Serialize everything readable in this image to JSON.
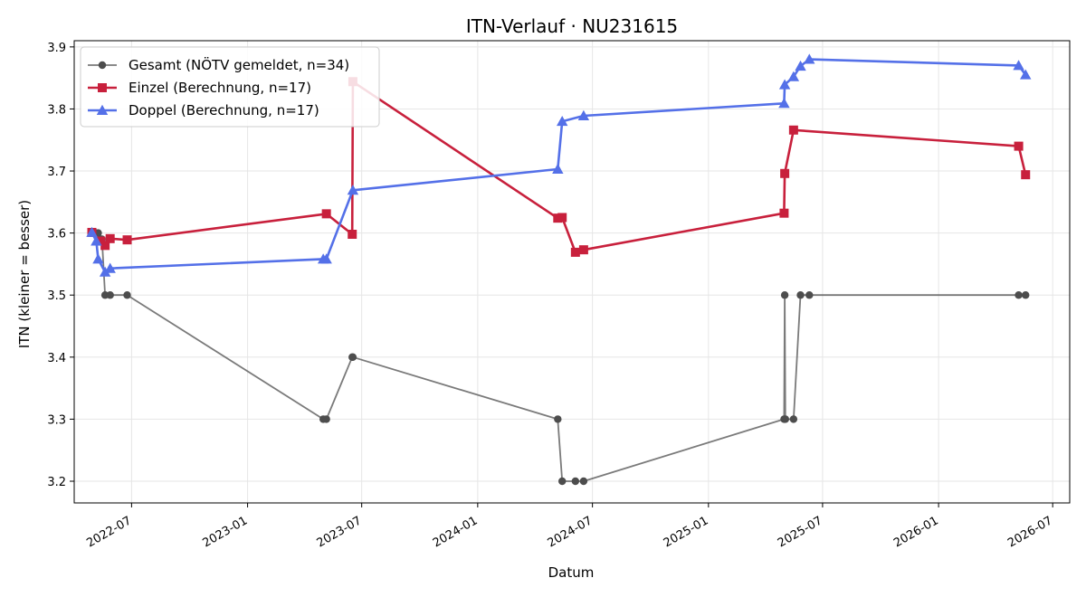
{
  "chart_data": {
    "type": "line",
    "title": "ITN-Verlauf · NU231615",
    "xlabel": "Datum",
    "ylabel": "ITN  (kleiner = besser)",
    "x_ticks": [
      "2022-07",
      "2023-01",
      "2023-07",
      "2024-01",
      "2024-07",
      "2025-01",
      "2025-07",
      "2026-01",
      "2026-07"
    ],
    "y_ticks": [
      3.2,
      3.3,
      3.4,
      3.5,
      3.6,
      3.7,
      3.8,
      3.9
    ],
    "xlim": [
      "2022-04-01",
      "2026-07-28"
    ],
    "ylim": [
      3.165,
      3.91
    ],
    "grid": true,
    "legend_position": "top-left",
    "series": [
      {
        "name": "Gesamt (NÖTV gemeldet, n=34)",
        "color": "#4d4d4d",
        "marker": "circle",
        "x": [
          "2022-04-29",
          "2022-05-04",
          "2022-05-06",
          "2022-05-09",
          "2022-05-13",
          "2022-05-15",
          "2022-05-20",
          "2022-05-28",
          "2022-06-24",
          "2023-05-01",
          "2023-05-06",
          "2023-06-16",
          "2023-06-17",
          "2024-05-07",
          "2024-05-14",
          "2024-06-04",
          "2024-06-17",
          "2025-05-01",
          "2025-05-02",
          "2025-05-03",
          "2025-05-16",
          "2025-05-27",
          "2025-06-10",
          "2026-05-08",
          "2026-05-19"
        ],
        "y": [
          3.6,
          3.6,
          3.6,
          3.6,
          3.59,
          3.59,
          3.5,
          3.5,
          3.5,
          3.3,
          3.3,
          3.4,
          3.4,
          3.3,
          3.2,
          3.2,
          3.2,
          3.3,
          3.5,
          3.3,
          3.3,
          3.5,
          3.5,
          3.5,
          3.5
        ]
      },
      {
        "name": "Einzel (Berechnung, n=17)",
        "color": "#c8203c",
        "marker": "square",
        "x": [
          "2022-04-29",
          "2022-05-13",
          "2022-05-20",
          "2022-05-28",
          "2022-06-24",
          "2023-05-06",
          "2023-06-16",
          "2023-06-17",
          "2024-05-07",
          "2024-05-14",
          "2024-06-04",
          "2024-06-17",
          "2025-05-01",
          "2025-05-02",
          "2025-05-16",
          "2026-05-08",
          "2026-05-19"
        ],
        "y": [
          3.601,
          3.587,
          3.58,
          3.591,
          3.589,
          3.631,
          3.598,
          3.844,
          3.624,
          3.625,
          3.569,
          3.573,
          3.632,
          3.696,
          3.766,
          3.74,
          3.694
        ]
      },
      {
        "name": "Doppel (Berechnung, n=17)",
        "color": "#5470e8",
        "marker": "triangle",
        "x": [
          "2022-04-29",
          "2022-05-06",
          "2022-05-09",
          "2022-05-20",
          "2022-05-28",
          "2023-05-01",
          "2023-05-06",
          "2023-06-17",
          "2024-05-07",
          "2024-05-14",
          "2024-06-17",
          "2025-05-01",
          "2025-05-02",
          "2025-05-16",
          "2025-05-27",
          "2025-06-10",
          "2026-05-08",
          "2026-05-19"
        ],
        "y": [
          3.601,
          3.587,
          3.558,
          3.537,
          3.543,
          3.558,
          3.558,
          3.669,
          3.703,
          3.78,
          3.789,
          3.809,
          3.839,
          3.852,
          3.869,
          3.88,
          3.87,
          3.855
        ]
      }
    ]
  }
}
